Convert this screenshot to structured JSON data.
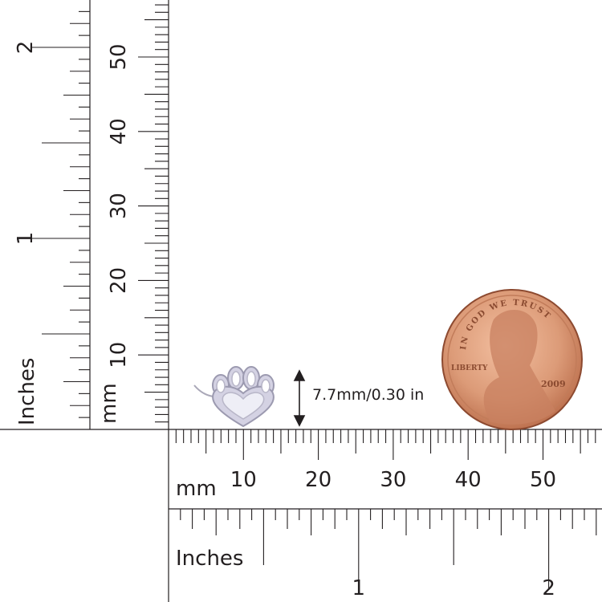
{
  "rulers": {
    "horizontal_mm": {
      "unit_label": "mm",
      "tick_labels": [
        "10",
        "20",
        "30",
        "40",
        "50"
      ]
    },
    "horizontal_in": {
      "unit_label": "Inches",
      "tick_labels": [
        "1",
        "2"
      ]
    },
    "vertical_mm": {
      "unit_label": "mm",
      "tick_labels": [
        "10",
        "20",
        "30",
        "40",
        "50"
      ]
    },
    "vertical_in": {
      "unit_label": "Inches",
      "tick_labels": [
        "1",
        "2"
      ]
    }
  },
  "product": {
    "name": "paw-heart-pendant",
    "dimension_label": "7.7mm/0.30 in",
    "metal_color": "#c9c7dc"
  },
  "coin": {
    "top_text": "IN GOD WE TRUST",
    "left_text": "LIBERTY",
    "year": "2009",
    "color": "#d99a78"
  },
  "colors": {
    "ink": "#231f20"
  }
}
